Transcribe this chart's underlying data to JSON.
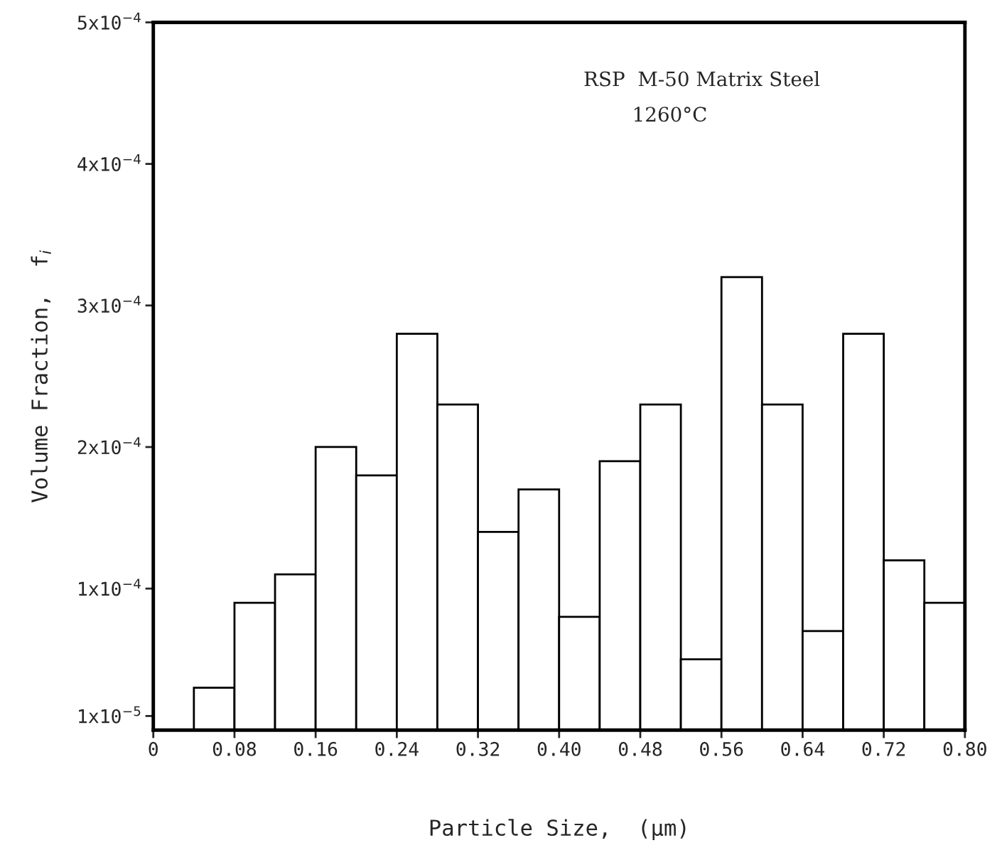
{
  "chart_data": {
    "type": "histogram",
    "xlabel": "Particle Size,  (μm)",
    "ylabel": "Volume Fraction,  f$_{i}$",
    "annotations": [
      "RSP  M-50 Matrix Steel",
      "1260°C"
    ],
    "bins": [
      0.04,
      0.08,
      0.12,
      0.16,
      0.2,
      0.24,
      0.28,
      0.32,
      0.36,
      0.4,
      0.44,
      0.48,
      0.52,
      0.56,
      0.6,
      0.64,
      0.68,
      0.72,
      0.76,
      0.8
    ],
    "values": [
      3e-05,
      9e-05,
      0.00011,
      0.0002,
      0.00018,
      0.00028,
      0.00023,
      0.00014,
      0.00017,
      8e-05,
      0.00019,
      0.00023,
      5e-05,
      0.00032,
      0.00023,
      7e-05,
      0.00028,
      0.00012,
      9e-05
    ],
    "color": "#ffffff",
    "xlim": [
      0,
      0.8
    ],
    "xticks": [
      0,
      {
        "value": 0.08,
        "label": "0.08"
      },
      {
        "value": 0.16,
        "label": "0.16"
      },
      {
        "value": 0.24,
        "label": "0.24"
      },
      {
        "value": 0.32,
        "label": "0.32"
      },
      {
        "value": 0.4,
        "label": "0.40"
      },
      {
        "value": 0.48,
        "label": "0.48"
      },
      {
        "value": 0.56,
        "label": "0.56"
      },
      {
        "value": 0.64,
        "label": "0.64"
      },
      {
        "value": 0.72,
        "label": "0.72"
      },
      {
        "value": 0.8,
        "label": "0.80"
      }
    ],
    "ylim": [
      0,
      0.0005
    ],
    "yticks": [
      {
        "value": 1e-05,
        "label": "1x10$^{−5}$"
      },
      {
        "value": 0.0001,
        "label": "1x10$^{−4}$"
      },
      {
        "value": 0.0002,
        "label": "2x10$^{−4}$"
      },
      {
        "value": 0.0003,
        "label": "3x10$^{−4}$"
      },
      {
        "value": 0.0004,
        "label": "4x10$^{−4}$"
      },
      {
        "value": 0.0005,
        "label": "5x10$^{−4}$"
      }
    ],
    "grid": false
  }
}
